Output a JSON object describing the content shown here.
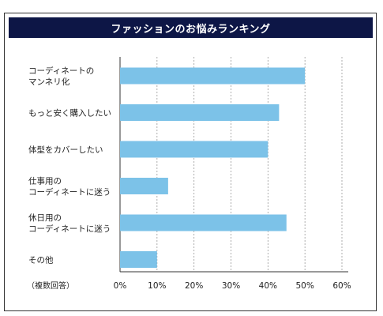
{
  "chart_data": {
    "type": "bar",
    "orientation": "horizontal",
    "title": "ファッションのお悩みランキング",
    "categories": [
      [
        "コーディネートの",
        "マンネリ化"
      ],
      [
        "もっと安く購入したい"
      ],
      [
        "体型をカバーしたい"
      ],
      [
        "仕事用の",
        "コーディネートに迷う"
      ],
      [
        "休日用の",
        "コーディネートに迷う"
      ],
      [
        "その他"
      ]
    ],
    "values": [
      50,
      43,
      40,
      13,
      45,
      10
    ],
    "xlim": [
      0,
      60
    ],
    "xticks": [
      "0%",
      "10%",
      "20%",
      "30%",
      "40%",
      "50%",
      "60%"
    ],
    "note": "（複数回答）",
    "grid": "vertical-dashed",
    "colors": {
      "bar": "#7cc2e8",
      "title_bg": "#0d1646",
      "grid": "#999999"
    }
  }
}
